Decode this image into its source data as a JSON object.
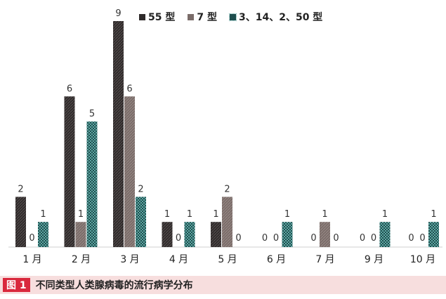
{
  "chart_data": {
    "type": "bar",
    "categories": [
      "1 月",
      "2 月",
      "3 月",
      "4 月",
      "5 月",
      "6 月",
      "7 月",
      "9 月",
      "10 月"
    ],
    "series": [
      {
        "name": "55 型",
        "values": [
          2,
          6,
          9,
          1,
          1,
          0,
          0,
          0,
          0
        ],
        "color": "#2e2a2a"
      },
      {
        "name": "7 型",
        "values": [
          0,
          1,
          6,
          0,
          2,
          0,
          1,
          0,
          0
        ],
        "color": "#7a6c69"
      },
      {
        "name": "3、14、2、50 型",
        "values": [
          1,
          5,
          2,
          1,
          0,
          1,
          0,
          1,
          1
        ],
        "color": "#1f4e4e"
      }
    ],
    "title": "",
    "xlabel": "",
    "ylabel": "",
    "ylim": [
      0,
      9
    ],
    "grid": false,
    "legend_position": "top"
  },
  "caption": {
    "badge": "图 1",
    "text": "不同类型人类腺病毒的流行病学分布"
  }
}
